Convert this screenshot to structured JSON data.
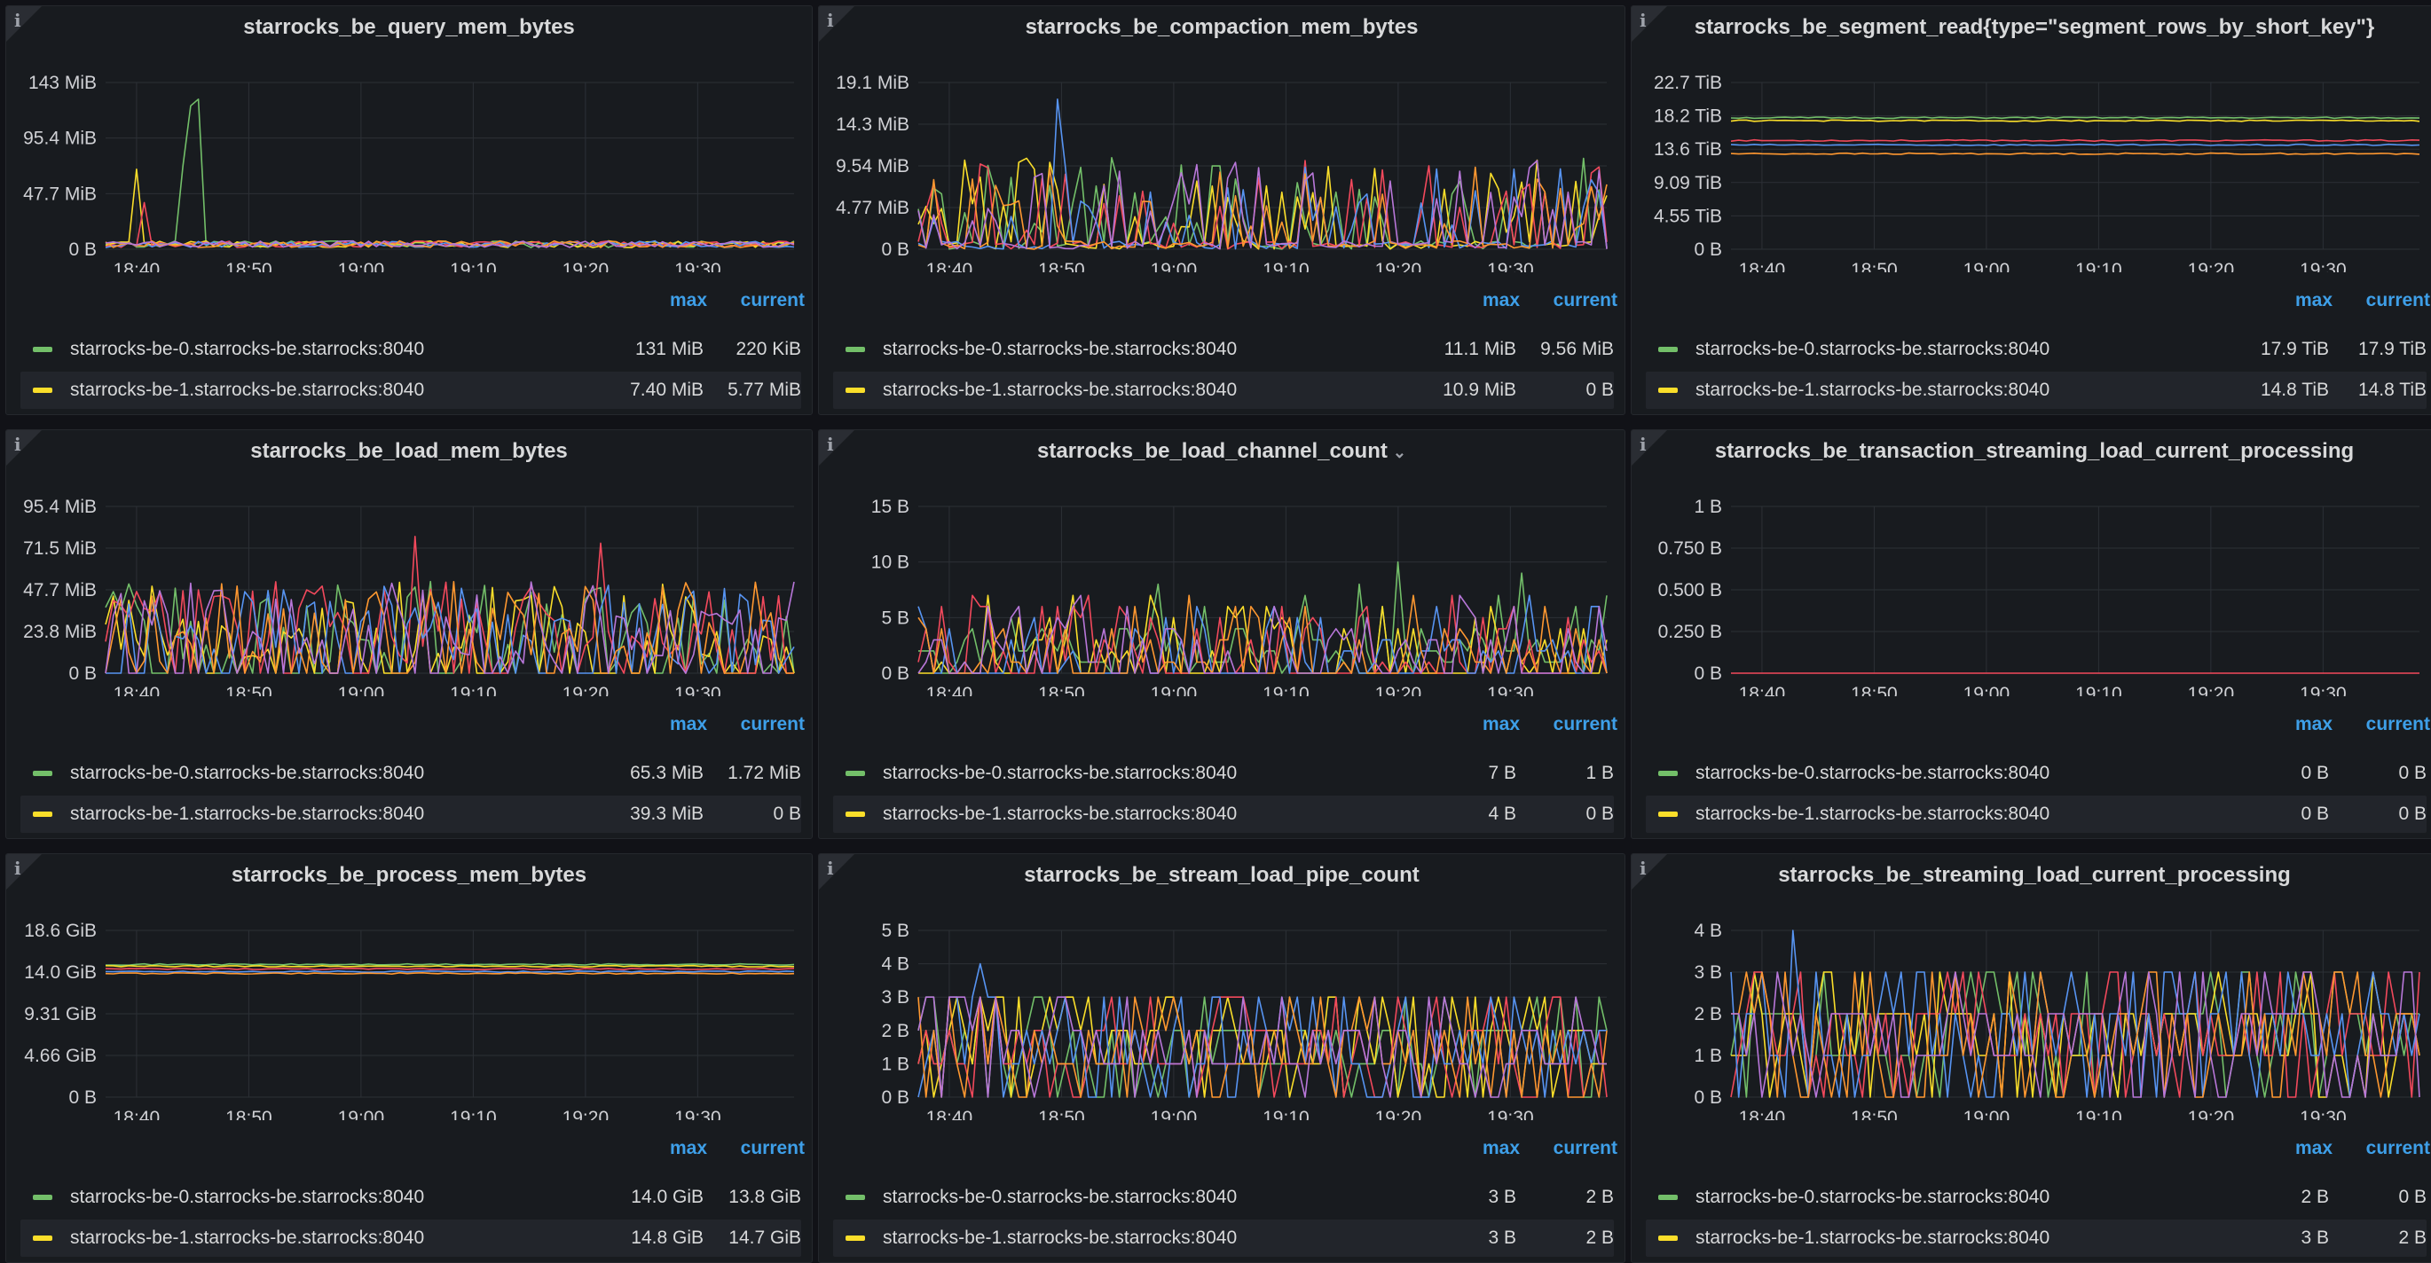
{
  "colors": {
    "series": [
      "#73bf69",
      "#fade2a",
      "#f2495c",
      "#5794f2",
      "#ff9830",
      "#b877d9",
      "#8ab8ff",
      "#6ed0e0"
    ],
    "legend_swatch": [
      "#73bf69",
      "#fade2a"
    ],
    "accent": "#3e9fe8"
  },
  "legend_headers": {
    "max": "max",
    "current": "current"
  },
  "panels": [
    {
      "title": "starrocks_be_query_mem_bytes",
      "dropdown": false,
      "chart_data": {
        "type": "line",
        "x_ticks": [
          "18:40",
          "18:50",
          "19:00",
          "19:10",
          "19:20",
          "19:30"
        ],
        "y_ticks": [
          "143 MiB",
          "95.4 MiB",
          "47.7 MiB",
          "0 B"
        ],
        "ylim": [
          0,
          143
        ],
        "unit": "MiB",
        "pattern": "query",
        "seed": 11,
        "grid": true
      },
      "legend": [
        {
          "name": "starrocks-be-0.starrocks-be.starrocks:8040",
          "max": "131 MiB",
          "current": "220 KiB"
        },
        {
          "name": "starrocks-be-1.starrocks-be.starrocks:8040",
          "max": "7.40 MiB",
          "current": "5.77 MiB"
        }
      ]
    },
    {
      "title": "starrocks_be_compaction_mem_bytes",
      "dropdown": false,
      "chart_data": {
        "type": "line",
        "x_ticks": [
          "18:40",
          "18:50",
          "19:00",
          "19:10",
          "19:20",
          "19:30"
        ],
        "y_ticks": [
          "19.1 MiB",
          "14.3 MiB",
          "9.54 MiB",
          "4.77 MiB",
          "0 B"
        ],
        "ylim": [
          0,
          19.1
        ],
        "unit": "MiB",
        "pattern": "spiky",
        "seed": 23,
        "grid": true
      },
      "legend": [
        {
          "name": "starrocks-be-0.starrocks-be.starrocks:8040",
          "max": "11.1 MiB",
          "current": "9.56 MiB"
        },
        {
          "name": "starrocks-be-1.starrocks-be.starrocks:8040",
          "max": "10.9 MiB",
          "current": "0 B"
        }
      ]
    },
    {
      "title": "starrocks_be_segment_read{type=\"segment_rows_by_short_key\"}",
      "dropdown": false,
      "chart_data": {
        "type": "line",
        "x_ticks": [
          "18:40",
          "18:50",
          "19:00",
          "19:10",
          "19:20",
          "19:30"
        ],
        "y_ticks": [
          "22.7 TiB",
          "18.2 TiB",
          "13.6 TiB",
          "9.09 TiB",
          "4.55 TiB",
          "0 B"
        ],
        "ylim": [
          0,
          22.7
        ],
        "unit": "TiB",
        "pattern": "flat",
        "levels": [
          17.9,
          17.5,
          14.8,
          14.2,
          13.0
        ],
        "seed": 5,
        "grid": true
      },
      "legend": [
        {
          "name": "starrocks-be-0.starrocks-be.starrocks:8040",
          "max": "17.9 TiB",
          "current": "17.9 TiB"
        },
        {
          "name": "starrocks-be-1.starrocks-be.starrocks:8040",
          "max": "14.8 TiB",
          "current": "14.8 TiB"
        }
      ]
    },
    {
      "title": "starrocks_be_load_mem_bytes",
      "dropdown": false,
      "chart_data": {
        "type": "line",
        "x_ticks": [
          "18:40",
          "18:50",
          "19:00",
          "19:10",
          "19:20",
          "19:30"
        ],
        "y_ticks": [
          "95.4 MiB",
          "71.5 MiB",
          "47.7 MiB",
          "23.8 MiB",
          "0 B"
        ],
        "ylim": [
          0,
          95.4
        ],
        "unit": "MiB",
        "pattern": "busy",
        "seed": 37,
        "grid": true
      },
      "legend": [
        {
          "name": "starrocks-be-0.starrocks-be.starrocks:8040",
          "max": "65.3 MiB",
          "current": "1.72 MiB"
        },
        {
          "name": "starrocks-be-1.starrocks-be.starrocks:8040",
          "max": "39.3 MiB",
          "current": "0 B"
        }
      ]
    },
    {
      "title": "starrocks_be_load_channel_count",
      "dropdown": true,
      "chart_data": {
        "type": "line",
        "x_ticks": [
          "18:40",
          "18:50",
          "19:00",
          "19:10",
          "19:20",
          "19:30"
        ],
        "y_ticks": [
          "15 B",
          "10 B",
          "5 B",
          "0 B"
        ],
        "ylim": [
          0,
          15
        ],
        "unit": "B",
        "pattern": "channel",
        "seed": 41,
        "grid": true
      },
      "legend": [
        {
          "name": "starrocks-be-0.starrocks-be.starrocks:8040",
          "max": "7 B",
          "current": "1 B"
        },
        {
          "name": "starrocks-be-1.starrocks-be.starrocks:8040",
          "max": "4 B",
          "current": "0 B"
        }
      ]
    },
    {
      "title": "starrocks_be_transaction_streaming_load_current_processing",
      "dropdown": false,
      "chart_data": {
        "type": "line",
        "x_ticks": [
          "18:40",
          "18:50",
          "19:00",
          "19:10",
          "19:20",
          "19:30"
        ],
        "y_ticks": [
          "1 B",
          "0.750 B",
          "0.500 B",
          "0.250 B",
          "0 B"
        ],
        "ylim": [
          0,
          1
        ],
        "unit": "B",
        "pattern": "zero",
        "seed": 3,
        "grid": true
      },
      "legend": [
        {
          "name": "starrocks-be-0.starrocks-be.starrocks:8040",
          "max": "0 B",
          "current": "0 B"
        },
        {
          "name": "starrocks-be-1.starrocks-be.starrocks:8040",
          "max": "0 B",
          "current": "0 B"
        }
      ]
    },
    {
      "title": "starrocks_be_process_mem_bytes",
      "dropdown": false,
      "chart_data": {
        "type": "line",
        "x_ticks": [
          "18:40",
          "18:50",
          "19:00",
          "19:10",
          "19:20",
          "19:30"
        ],
        "y_ticks": [
          "18.6 GiB",
          "14.0 GiB",
          "9.31 GiB",
          "4.66 GiB",
          "0 B"
        ],
        "ylim": [
          0,
          18.6
        ],
        "unit": "GiB",
        "pattern": "flat",
        "levels": [
          14.8,
          14.6,
          14.3,
          14.0,
          13.8
        ],
        "seed": 7,
        "grid": true
      },
      "legend": [
        {
          "name": "starrocks-be-0.starrocks-be.starrocks:8040",
          "max": "14.0 GiB",
          "current": "13.8 GiB"
        },
        {
          "name": "starrocks-be-1.starrocks-be.starrocks:8040",
          "max": "14.8 GiB",
          "current": "14.7 GiB"
        }
      ]
    },
    {
      "title": "starrocks_be_stream_load_pipe_count",
      "dropdown": false,
      "chart_data": {
        "type": "line",
        "x_ticks": [
          "18:40",
          "18:50",
          "19:00",
          "19:10",
          "19:20",
          "19:30"
        ],
        "y_ticks": [
          "5 B",
          "4 B",
          "3 B",
          "2 B",
          "1 B",
          "0 B"
        ],
        "ylim": [
          0,
          5
        ],
        "unit": "B",
        "pattern": "steps",
        "maxstep": 3,
        "seed": 53,
        "grid": true
      },
      "legend": [
        {
          "name": "starrocks-be-0.starrocks-be.starrocks:8040",
          "max": "3 B",
          "current": "2 B"
        },
        {
          "name": "starrocks-be-1.starrocks-be.starrocks:8040",
          "max": "3 B",
          "current": "2 B"
        }
      ]
    },
    {
      "title": "starrocks_be_streaming_load_current_processing",
      "dropdown": false,
      "chart_data": {
        "type": "line",
        "x_ticks": [
          "18:40",
          "18:50",
          "19:00",
          "19:10",
          "19:20",
          "19:30"
        ],
        "y_ticks": [
          "4 B",
          "3 B",
          "2 B",
          "1 B",
          "0 B"
        ],
        "ylim": [
          0,
          4
        ],
        "unit": "B",
        "pattern": "steps",
        "maxstep": 3,
        "seed": 61,
        "grid": true
      },
      "legend": [
        {
          "name": "starrocks-be-0.starrocks-be.starrocks:8040",
          "max": "2 B",
          "current": "0 B"
        },
        {
          "name": "starrocks-be-1.starrocks-be.starrocks:8040",
          "max": "3 B",
          "current": "2 B"
        }
      ]
    }
  ]
}
